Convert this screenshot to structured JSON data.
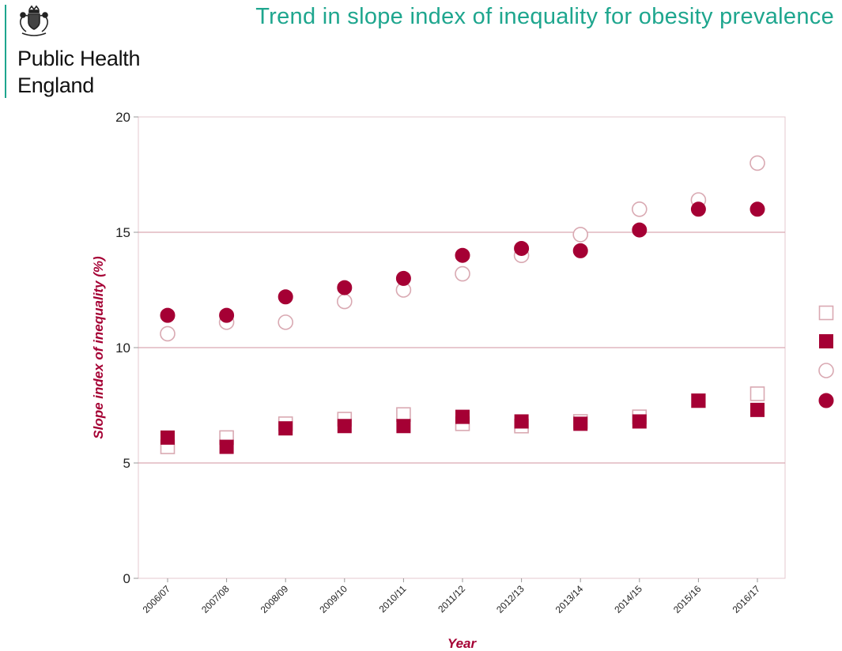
{
  "header": {
    "org_line1": "Public Health",
    "org_line2": "England",
    "title": "Trend in slope index of inequality for obesity prevalence",
    "logo_icon": "royal-crest-icon",
    "accent_color": "#1ea68e"
  },
  "chart_data": {
    "type": "scatter",
    "xlabel": "Year",
    "ylabel": "Slope index of inequality (%)",
    "categories": [
      "2006/07",
      "2007/08",
      "2008/09",
      "2009/10",
      "2010/11",
      "2011/12",
      "2012/13",
      "2013/14",
      "2014/15",
      "2015/16",
      "2016/17"
    ],
    "ylim": [
      0,
      20
    ],
    "yticks": [
      0,
      5,
      10,
      15,
      20
    ],
    "grid": "horizontal",
    "series": [
      {
        "marker": "square-open",
        "color": "#a50034",
        "values": [
          5.7,
          6.1,
          6.7,
          6.9,
          7.1,
          6.7,
          6.6,
          6.8,
          7.0,
          7.7,
          8.0
        ]
      },
      {
        "marker": "square-filled",
        "color": "#a50034",
        "values": [
          6.1,
          5.7,
          6.5,
          6.6,
          6.6,
          7.0,
          6.8,
          6.7,
          6.8,
          7.7,
          7.3
        ]
      },
      {
        "marker": "circle-open",
        "color": "#a50034",
        "values": [
          10.6,
          11.1,
          11.1,
          12.0,
          12.5,
          13.2,
          14.0,
          14.9,
          16.0,
          16.4,
          18.0
        ]
      },
      {
        "marker": "circle-filled",
        "color": "#a50034",
        "values": [
          11.4,
          11.4,
          12.2,
          12.6,
          13.0,
          14.0,
          14.3,
          14.2,
          15.1,
          16.0,
          16.0
        ]
      }
    ]
  }
}
